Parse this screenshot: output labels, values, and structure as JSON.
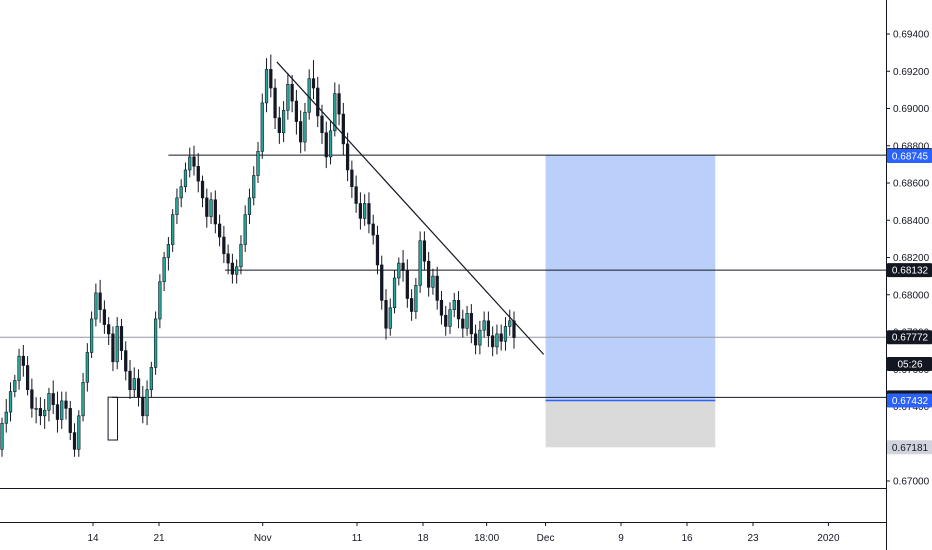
{
  "chart_data": {
    "type": "candlestick",
    "title": "",
    "xlabel": "",
    "ylabel": "",
    "grid": false,
    "legend": "none",
    "y_ticks": [
      "0.69400",
      "0.69200",
      "0.69000",
      "0.68800",
      "0.68600",
      "0.68400",
      "0.68200",
      "0.68000",
      "0.67800",
      "0.67600",
      "0.67400",
      "0.67200",
      "0.67000"
    ],
    "x_ticks": [
      {
        "label": "14",
        "day": 14
      },
      {
        "label": "21",
        "day": 21
      },
      {
        "label": "Nov",
        "day": 32
      },
      {
        "label": "11",
        "day": 42
      },
      {
        "label": "18",
        "day": 49
      },
      {
        "label": "18:00",
        "day": 55.75
      },
      {
        "label": "Dec",
        "day": 62
      },
      {
        "label": "9",
        "day": 70
      },
      {
        "label": "16",
        "day": 77
      },
      {
        "label": "23",
        "day": 84
      },
      {
        "label": "2020",
        "day": 92
      }
    ],
    "price_tags": [
      {
        "label": "0.68750",
        "value": 0.6875,
        "bg": "#131722",
        "fg": "#ffffff"
      },
      {
        "label": "0.68745",
        "value": 0.68745,
        "bg": "#2962ff",
        "fg": "#ffffff"
      },
      {
        "label": "0.68132",
        "value": 0.68132,
        "bg": "#131722",
        "fg": "#ffffff"
      },
      {
        "label": "0.67772",
        "value": 0.67772,
        "bg": "#131722",
        "fg": "#ffffff"
      },
      {
        "label": "05:26",
        "value": 0.67628,
        "bg": "#131722",
        "fg": "#ffffff"
      },
      {
        "label": "0.67449",
        "value": 0.67449,
        "bg": "#131722",
        "fg": "#ffffff"
      },
      {
        "label": "0.67432",
        "value": 0.67432,
        "bg": "#2962ff",
        "fg": "#ffffff"
      },
      {
        "label": "0.67181",
        "value": 0.67181,
        "bg": "#d1d4dc",
        "fg": "#131722"
      }
    ],
    "horizontal_lines": [
      {
        "name": "resistance-line",
        "from_day": 22,
        "value": 0.6875
      },
      {
        "name": "mid-support-line",
        "from_day": 28,
        "value": 0.68132
      },
      {
        "name": "support-line",
        "from_day": 16,
        "value": 0.67449
      },
      {
        "name": "bottom-line",
        "from_day": 0,
        "value": 0.6696
      }
    ],
    "current_price_line": {
      "value": 0.67772
    },
    "trendline": {
      "start": {
        "day": 33.5,
        "value": 0.6925
      },
      "end": {
        "day": 61.8,
        "value": 0.6768
      }
    },
    "position_tool": {
      "from_day": 62,
      "to_day": 80,
      "entry": 0.67432,
      "target": 0.6875,
      "stop": 0.67181,
      "target_color": "#b6cdfb",
      "stop_color": "#dadada",
      "entry_color": "#2962ff"
    },
    "wick_box": {
      "from_day": 15.6,
      "to_day": 16.6,
      "top": 0.6745,
      "bottom": 0.6722
    },
    "candles_ohlc": [
      [
        0.6717,
        0.6734,
        0.6713,
        0.6731
      ],
      [
        0.6731,
        0.6744,
        0.6726,
        0.6737
      ],
      [
        0.6737,
        0.6753,
        0.6732,
        0.6748
      ],
      [
        0.6748,
        0.6757,
        0.6745,
        0.6754
      ],
      [
        0.6754,
        0.6771,
        0.6749,
        0.6767
      ],
      [
        0.6767,
        0.6773,
        0.6756,
        0.6762
      ],
      [
        0.6762,
        0.6767,
        0.6746,
        0.6749
      ],
      [
        0.6749,
        0.6755,
        0.6734,
        0.6739
      ],
      [
        0.6739,
        0.6745,
        0.6731,
        0.6739
      ],
      [
        0.6739,
        0.6745,
        0.673,
        0.6735
      ],
      [
        0.6735,
        0.6744,
        0.6728,
        0.6738
      ],
      [
        0.6738,
        0.675,
        0.6732,
        0.6747
      ],
      [
        0.6747,
        0.6754,
        0.6736,
        0.6741
      ],
      [
        0.6741,
        0.6748,
        0.6726,
        0.6733
      ],
      [
        0.6733,
        0.6748,
        0.6728,
        0.6743
      ],
      [
        0.6743,
        0.6748,
        0.6733,
        0.6739
      ],
      [
        0.6739,
        0.6743,
        0.6722,
        0.6726
      ],
      [
        0.6726,
        0.6731,
        0.6713,
        0.6717
      ],
      [
        0.6717,
        0.6738,
        0.6713,
        0.6735
      ],
      [
        0.6735,
        0.6758,
        0.6732,
        0.6753
      ],
      [
        0.6753,
        0.6774,
        0.6748,
        0.6769
      ],
      [
        0.6769,
        0.6791,
        0.6766,
        0.6787
      ],
      [
        0.6787,
        0.6806,
        0.6783,
        0.6801
      ],
      [
        0.6801,
        0.6808,
        0.6785,
        0.6792
      ],
      [
        0.6792,
        0.6797,
        0.6779,
        0.6784
      ],
      [
        0.6784,
        0.6788,
        0.6773,
        0.6779
      ],
      [
        0.6779,
        0.6783,
        0.6759,
        0.6764
      ],
      [
        0.6764,
        0.6788,
        0.676,
        0.6783
      ],
      [
        0.6783,
        0.6787,
        0.6765,
        0.677
      ],
      [
        0.677,
        0.6775,
        0.6754,
        0.6759
      ],
      [
        0.6759,
        0.6765,
        0.6744,
        0.6749
      ],
      [
        0.6749,
        0.6761,
        0.6745,
        0.6755
      ],
      [
        0.6755,
        0.676,
        0.674,
        0.6745
      ],
      [
        0.6745,
        0.6751,
        0.6731,
        0.6735
      ],
      [
        0.6735,
        0.6754,
        0.673,
        0.6749
      ],
      [
        0.6749,
        0.6764,
        0.6745,
        0.6761
      ],
      [
        0.6761,
        0.6791,
        0.6757,
        0.6787
      ],
      [
        0.6787,
        0.6811,
        0.6782,
        0.6807
      ],
      [
        0.6807,
        0.6823,
        0.6802,
        0.682
      ],
      [
        0.682,
        0.6831,
        0.6813,
        0.6827
      ],
      [
        0.6827,
        0.6846,
        0.6823,
        0.6843
      ],
      [
        0.6843,
        0.6857,
        0.6838,
        0.6852
      ],
      [
        0.6852,
        0.6862,
        0.6847,
        0.6858
      ],
      [
        0.6858,
        0.6871,
        0.6855,
        0.6867
      ],
      [
        0.6867,
        0.6879,
        0.6863,
        0.6874
      ],
      [
        0.6874,
        0.688,
        0.6864,
        0.6869
      ],
      [
        0.6869,
        0.6876,
        0.6855,
        0.6861
      ],
      [
        0.6861,
        0.6864,
        0.6847,
        0.6852
      ],
      [
        0.6852,
        0.6857,
        0.6836,
        0.6842
      ],
      [
        0.6842,
        0.6855,
        0.6838,
        0.6851
      ],
      [
        0.6851,
        0.6856,
        0.6833,
        0.6838
      ],
      [
        0.6838,
        0.6843,
        0.6826,
        0.6831
      ],
      [
        0.6831,
        0.6837,
        0.6817,
        0.6822
      ],
      [
        0.6822,
        0.6827,
        0.6811,
        0.6817
      ],
      [
        0.6817,
        0.6822,
        0.6806,
        0.6811
      ],
      [
        0.6811,
        0.6819,
        0.6806,
        0.6815
      ],
      [
        0.6815,
        0.6832,
        0.6811,
        0.6827
      ],
      [
        0.6827,
        0.6848,
        0.6823,
        0.6843
      ],
      [
        0.6843,
        0.6857,
        0.6838,
        0.6852
      ],
      [
        0.6852,
        0.6869,
        0.6848,
        0.6864
      ],
      [
        0.6864,
        0.6882,
        0.686,
        0.6877
      ],
      [
        0.6877,
        0.6908,
        0.6873,
        0.6903
      ],
      [
        0.6903,
        0.6927,
        0.6898,
        0.6921
      ],
      [
        0.6921,
        0.6929,
        0.6906,
        0.6911
      ],
      [
        0.6911,
        0.6916,
        0.6889,
        0.6895
      ],
      [
        0.6895,
        0.6901,
        0.6881,
        0.6887
      ],
      [
        0.6887,
        0.6904,
        0.6882,
        0.6899
      ],
      [
        0.6899,
        0.6919,
        0.6894,
        0.6913
      ],
      [
        0.6913,
        0.6918,
        0.6898,
        0.6904
      ],
      [
        0.6904,
        0.691,
        0.6886,
        0.6893
      ],
      [
        0.6893,
        0.6899,
        0.6876,
        0.6882
      ],
      [
        0.6882,
        0.6903,
        0.6877,
        0.6898
      ],
      [
        0.6898,
        0.6921,
        0.6894,
        0.6916
      ],
      [
        0.6916,
        0.6926,
        0.6905,
        0.6911
      ],
      [
        0.6911,
        0.6917,
        0.689,
        0.6896
      ],
      [
        0.6896,
        0.6902,
        0.6881,
        0.6887
      ],
      [
        0.6887,
        0.6893,
        0.6868,
        0.6874
      ],
      [
        0.6874,
        0.6893,
        0.687,
        0.6888
      ],
      [
        0.6888,
        0.6914,
        0.6885,
        0.6908
      ],
      [
        0.6908,
        0.6913,
        0.6891,
        0.6897
      ],
      [
        0.6897,
        0.6903,
        0.6875,
        0.6881
      ],
      [
        0.6881,
        0.6887,
        0.6861,
        0.6867
      ],
      [
        0.6867,
        0.6872,
        0.6852,
        0.6858
      ],
      [
        0.6858,
        0.6864,
        0.6844,
        0.6849
      ],
      [
        0.6849,
        0.6855,
        0.6835,
        0.6841
      ],
      [
        0.6841,
        0.6854,
        0.6837,
        0.6849
      ],
      [
        0.6849,
        0.6855,
        0.6833,
        0.6838
      ],
      [
        0.6838,
        0.6843,
        0.6827,
        0.6832
      ],
      [
        0.6832,
        0.6837,
        0.6811,
        0.6816
      ],
      [
        0.6816,
        0.6821,
        0.6792,
        0.6797
      ],
      [
        0.6797,
        0.6803,
        0.6776,
        0.6782
      ],
      [
        0.6782,
        0.6798,
        0.6778,
        0.6793
      ],
      [
        0.6793,
        0.6813,
        0.679,
        0.6809
      ],
      [
        0.6809,
        0.682,
        0.6805,
        0.6817
      ],
      [
        0.6817,
        0.6824,
        0.6807,
        0.6813
      ],
      [
        0.6813,
        0.6819,
        0.6793,
        0.6798
      ],
      [
        0.6798,
        0.6803,
        0.6786,
        0.6791
      ],
      [
        0.6791,
        0.6809,
        0.6787,
        0.6805
      ],
      [
        0.6805,
        0.6834,
        0.6801,
        0.6829
      ],
      [
        0.6829,
        0.6834,
        0.6813,
        0.6818
      ],
      [
        0.6818,
        0.6823,
        0.6799,
        0.6804
      ],
      [
        0.6804,
        0.6814,
        0.68,
        0.681
      ],
      [
        0.681,
        0.6815,
        0.6792,
        0.6797
      ],
      [
        0.6797,
        0.6802,
        0.6784,
        0.6789
      ],
      [
        0.6789,
        0.6794,
        0.6778,
        0.6783
      ],
      [
        0.6783,
        0.6796,
        0.6779,
        0.6792
      ],
      [
        0.6792,
        0.6801,
        0.6788,
        0.6797
      ],
      [
        0.6797,
        0.6802,
        0.6782,
        0.6787
      ],
      [
        0.6787,
        0.6792,
        0.6777,
        0.6782
      ],
      [
        0.6782,
        0.6794,
        0.6778,
        0.679
      ],
      [
        0.679,
        0.6795,
        0.6774,
        0.6779
      ],
      [
        0.6779,
        0.6784,
        0.6768,
        0.6773
      ],
      [
        0.6773,
        0.6786,
        0.6768,
        0.6781
      ],
      [
        0.6781,
        0.6791,
        0.6777,
        0.6786
      ],
      [
        0.6786,
        0.6791,
        0.6772,
        0.6778
      ],
      [
        0.6778,
        0.6783,
        0.6767,
        0.6772
      ],
      [
        0.6772,
        0.6784,
        0.6768,
        0.6779
      ],
      [
        0.6779,
        0.6784,
        0.677,
        0.6775
      ],
      [
        0.6775,
        0.6788,
        0.677,
        0.6783
      ],
      [
        0.6783,
        0.6792,
        0.6778,
        0.6786
      ],
      [
        0.6786,
        0.6791,
        0.6771,
        0.6777
      ]
    ]
  }
}
